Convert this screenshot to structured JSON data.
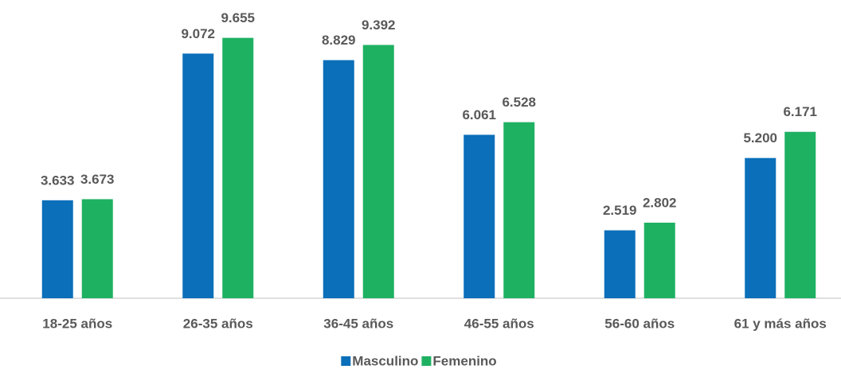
{
  "chart_data": {
    "type": "bar",
    "categories": [
      "18-25 años",
      "26-35 años",
      "36-45 años",
      "46-55 años",
      "56-60 años",
      "61 y más años"
    ],
    "series": [
      {
        "name": "Masculino",
        "color": "#0b6fba",
        "values": [
          3633,
          9072,
          8829,
          6061,
          2519,
          5200
        ],
        "value_labels": [
          "3.633",
          "9.072",
          "8.829",
          "6.061",
          "2.519",
          "5.200"
        ]
      },
      {
        "name": "Femenino",
        "color": "#1eb162",
        "values": [
          3673,
          9655,
          9392,
          6528,
          2802,
          6171
        ],
        "value_labels": [
          "3.673",
          "9.655",
          "9.392",
          "6.528",
          "2.802",
          "6.171"
        ]
      }
    ],
    "ylim": [
      0,
      11000
    ],
    "legend": "bottom"
  }
}
